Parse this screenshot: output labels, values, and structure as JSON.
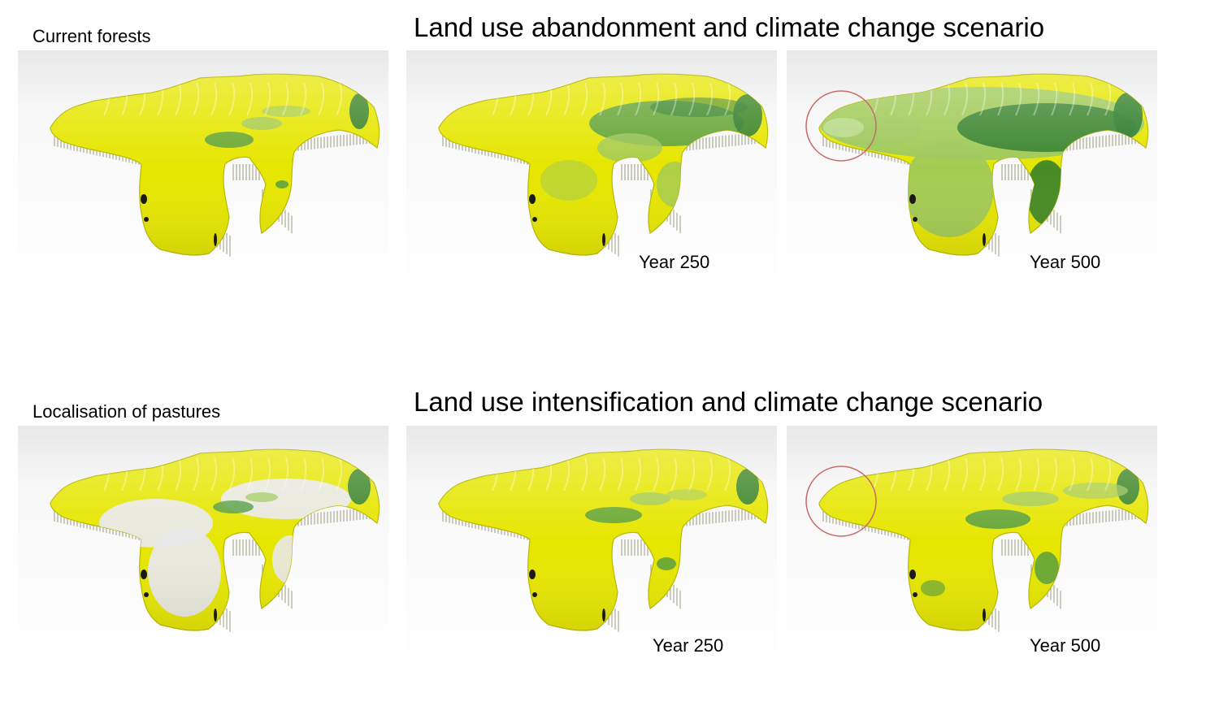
{
  "top_row": {
    "left_label": "Current forests",
    "scenario_title": "Land use abandonment and climate change scenario",
    "year_a": "Year 250",
    "year_b": "Year 500"
  },
  "bottom_row": {
    "left_label": "Localisation of pastures",
    "scenario_title": "Land use intensification and climate change scenario",
    "year_a": "Year 250",
    "year_b": "Year 500"
  },
  "panels": [
    {
      "id": "current-forests-map",
      "scheme": "current",
      "highlight_circle": false
    },
    {
      "id": "abandonment-year-250-map",
      "scheme": "aband250",
      "highlight_circle": false
    },
    {
      "id": "abandonment-year-500-map",
      "scheme": "aband500",
      "highlight_circle": true
    },
    {
      "id": "pastures-map",
      "scheme": "pastures",
      "highlight_circle": false
    },
    {
      "id": "intensification-year-250-map",
      "scheme": "intens250",
      "highlight_circle": false
    },
    {
      "id": "intensification-year-500-map",
      "scheme": "intens500",
      "highlight_circle": true
    }
  ],
  "colors": {
    "yellow": "#e6e600",
    "light_green": "#9cc85a",
    "mid_green": "#4d9a3e",
    "dark_green": "#2a7a2a",
    "pasture_white": "#e8e8e8",
    "circle": "#c86a6a"
  }
}
